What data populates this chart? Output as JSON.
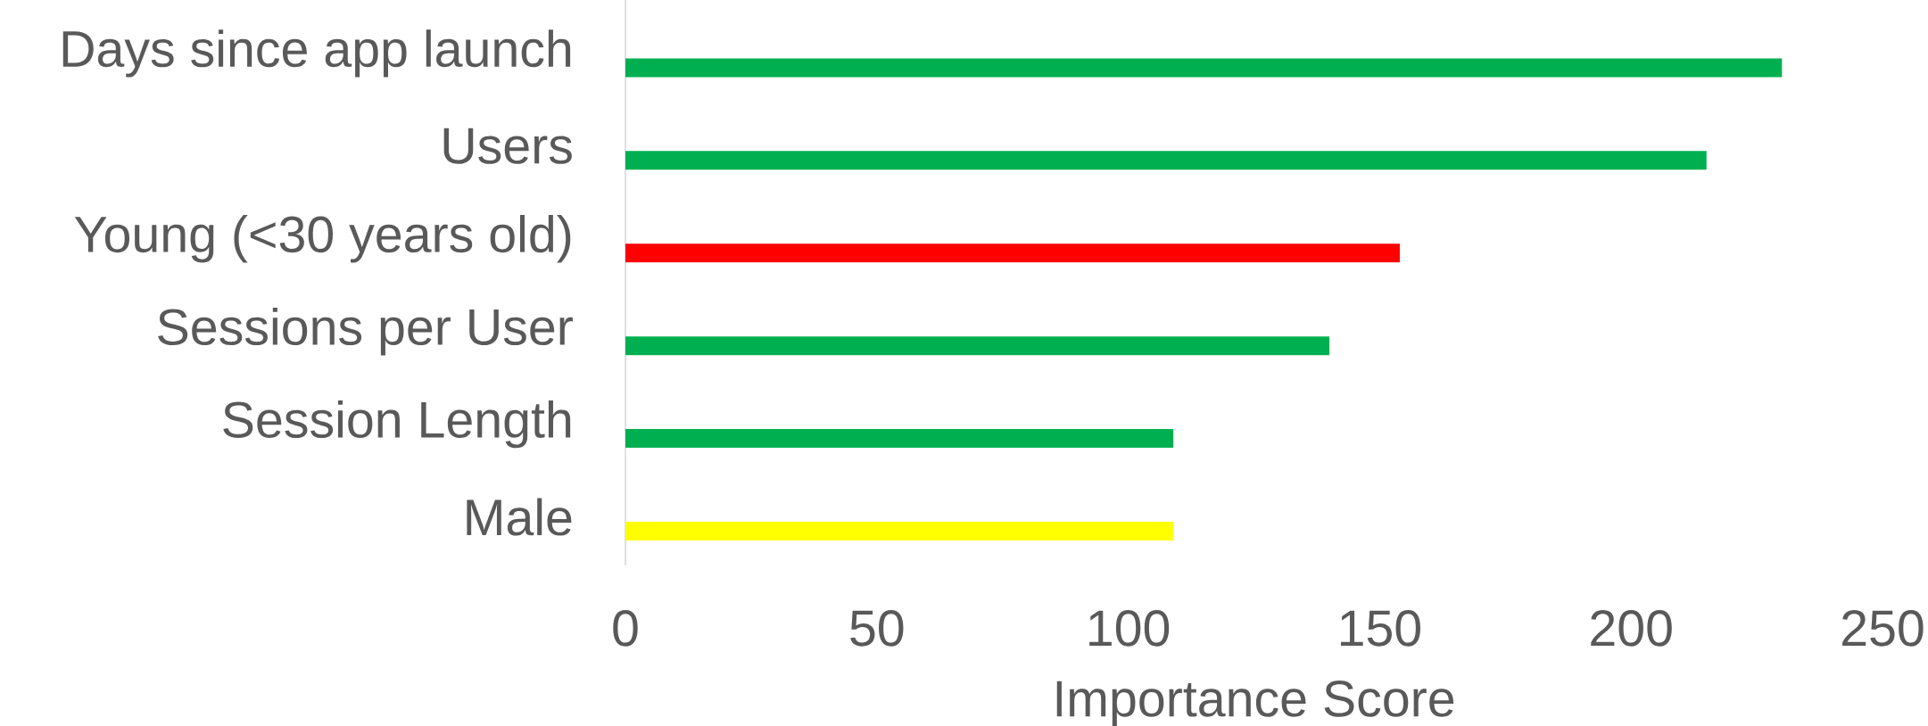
{
  "chart_data": {
    "type": "bar",
    "orientation": "horizontal",
    "categories": [
      "Days since app launch",
      "Users",
      "Young (<30 years old)",
      "Sessions per User",
      "Session Length",
      "Male"
    ],
    "values": [
      230,
      215,
      154,
      140,
      109,
      109
    ],
    "colors": [
      "#00b050",
      "#00b050",
      "#ff0000",
      "#00b050",
      "#00b050",
      "#ffff00"
    ],
    "xlabel": "Importance Score",
    "xlim": [
      0,
      250
    ],
    "xticks": [
      0,
      50,
      100,
      150,
      200,
      250
    ]
  }
}
